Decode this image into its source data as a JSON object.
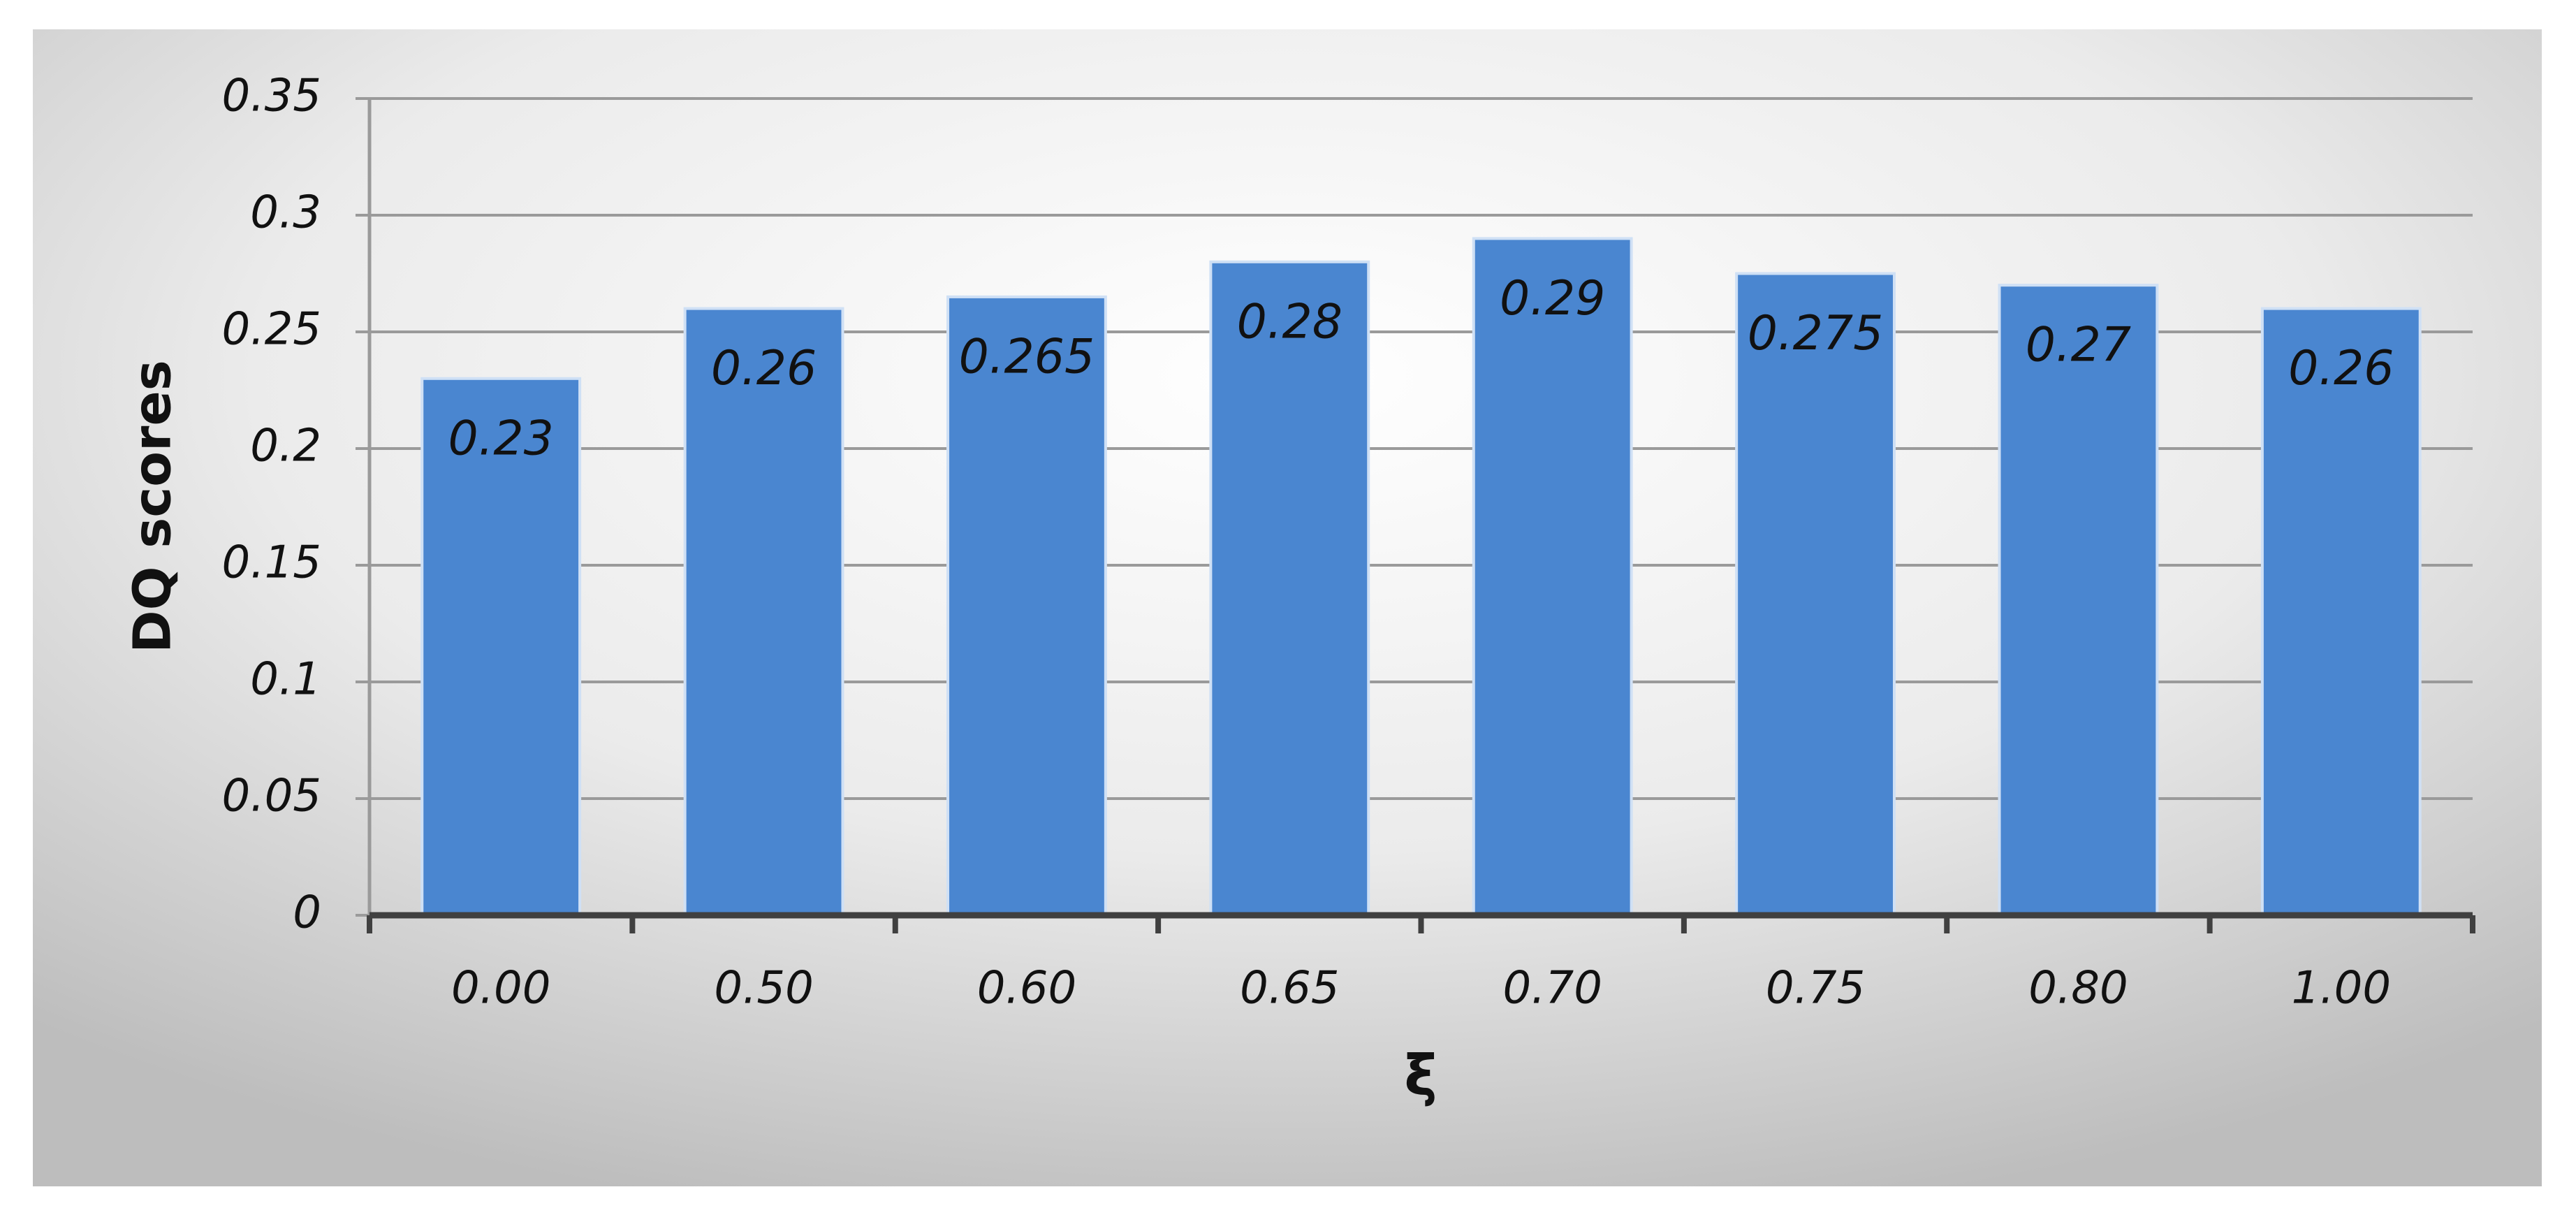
{
  "chart_data": {
    "type": "bar",
    "x_label": "ξ",
    "y_label": "DQ scores",
    "categories": [
      "0.00",
      "0.50",
      "0.60",
      "0.65",
      "0.70",
      "0.75",
      "0.80",
      "1.00"
    ],
    "values": [
      0.23,
      0.26,
      0.265,
      0.28,
      0.29,
      0.275,
      0.27,
      0.26
    ],
    "color": "#4a86d0",
    "ylim": [
      0,
      0.35
    ],
    "yticks": [
      0,
      0.05,
      0.1,
      0.15,
      0.2,
      0.25,
      0.3,
      0.35
    ],
    "grid": true
  }
}
